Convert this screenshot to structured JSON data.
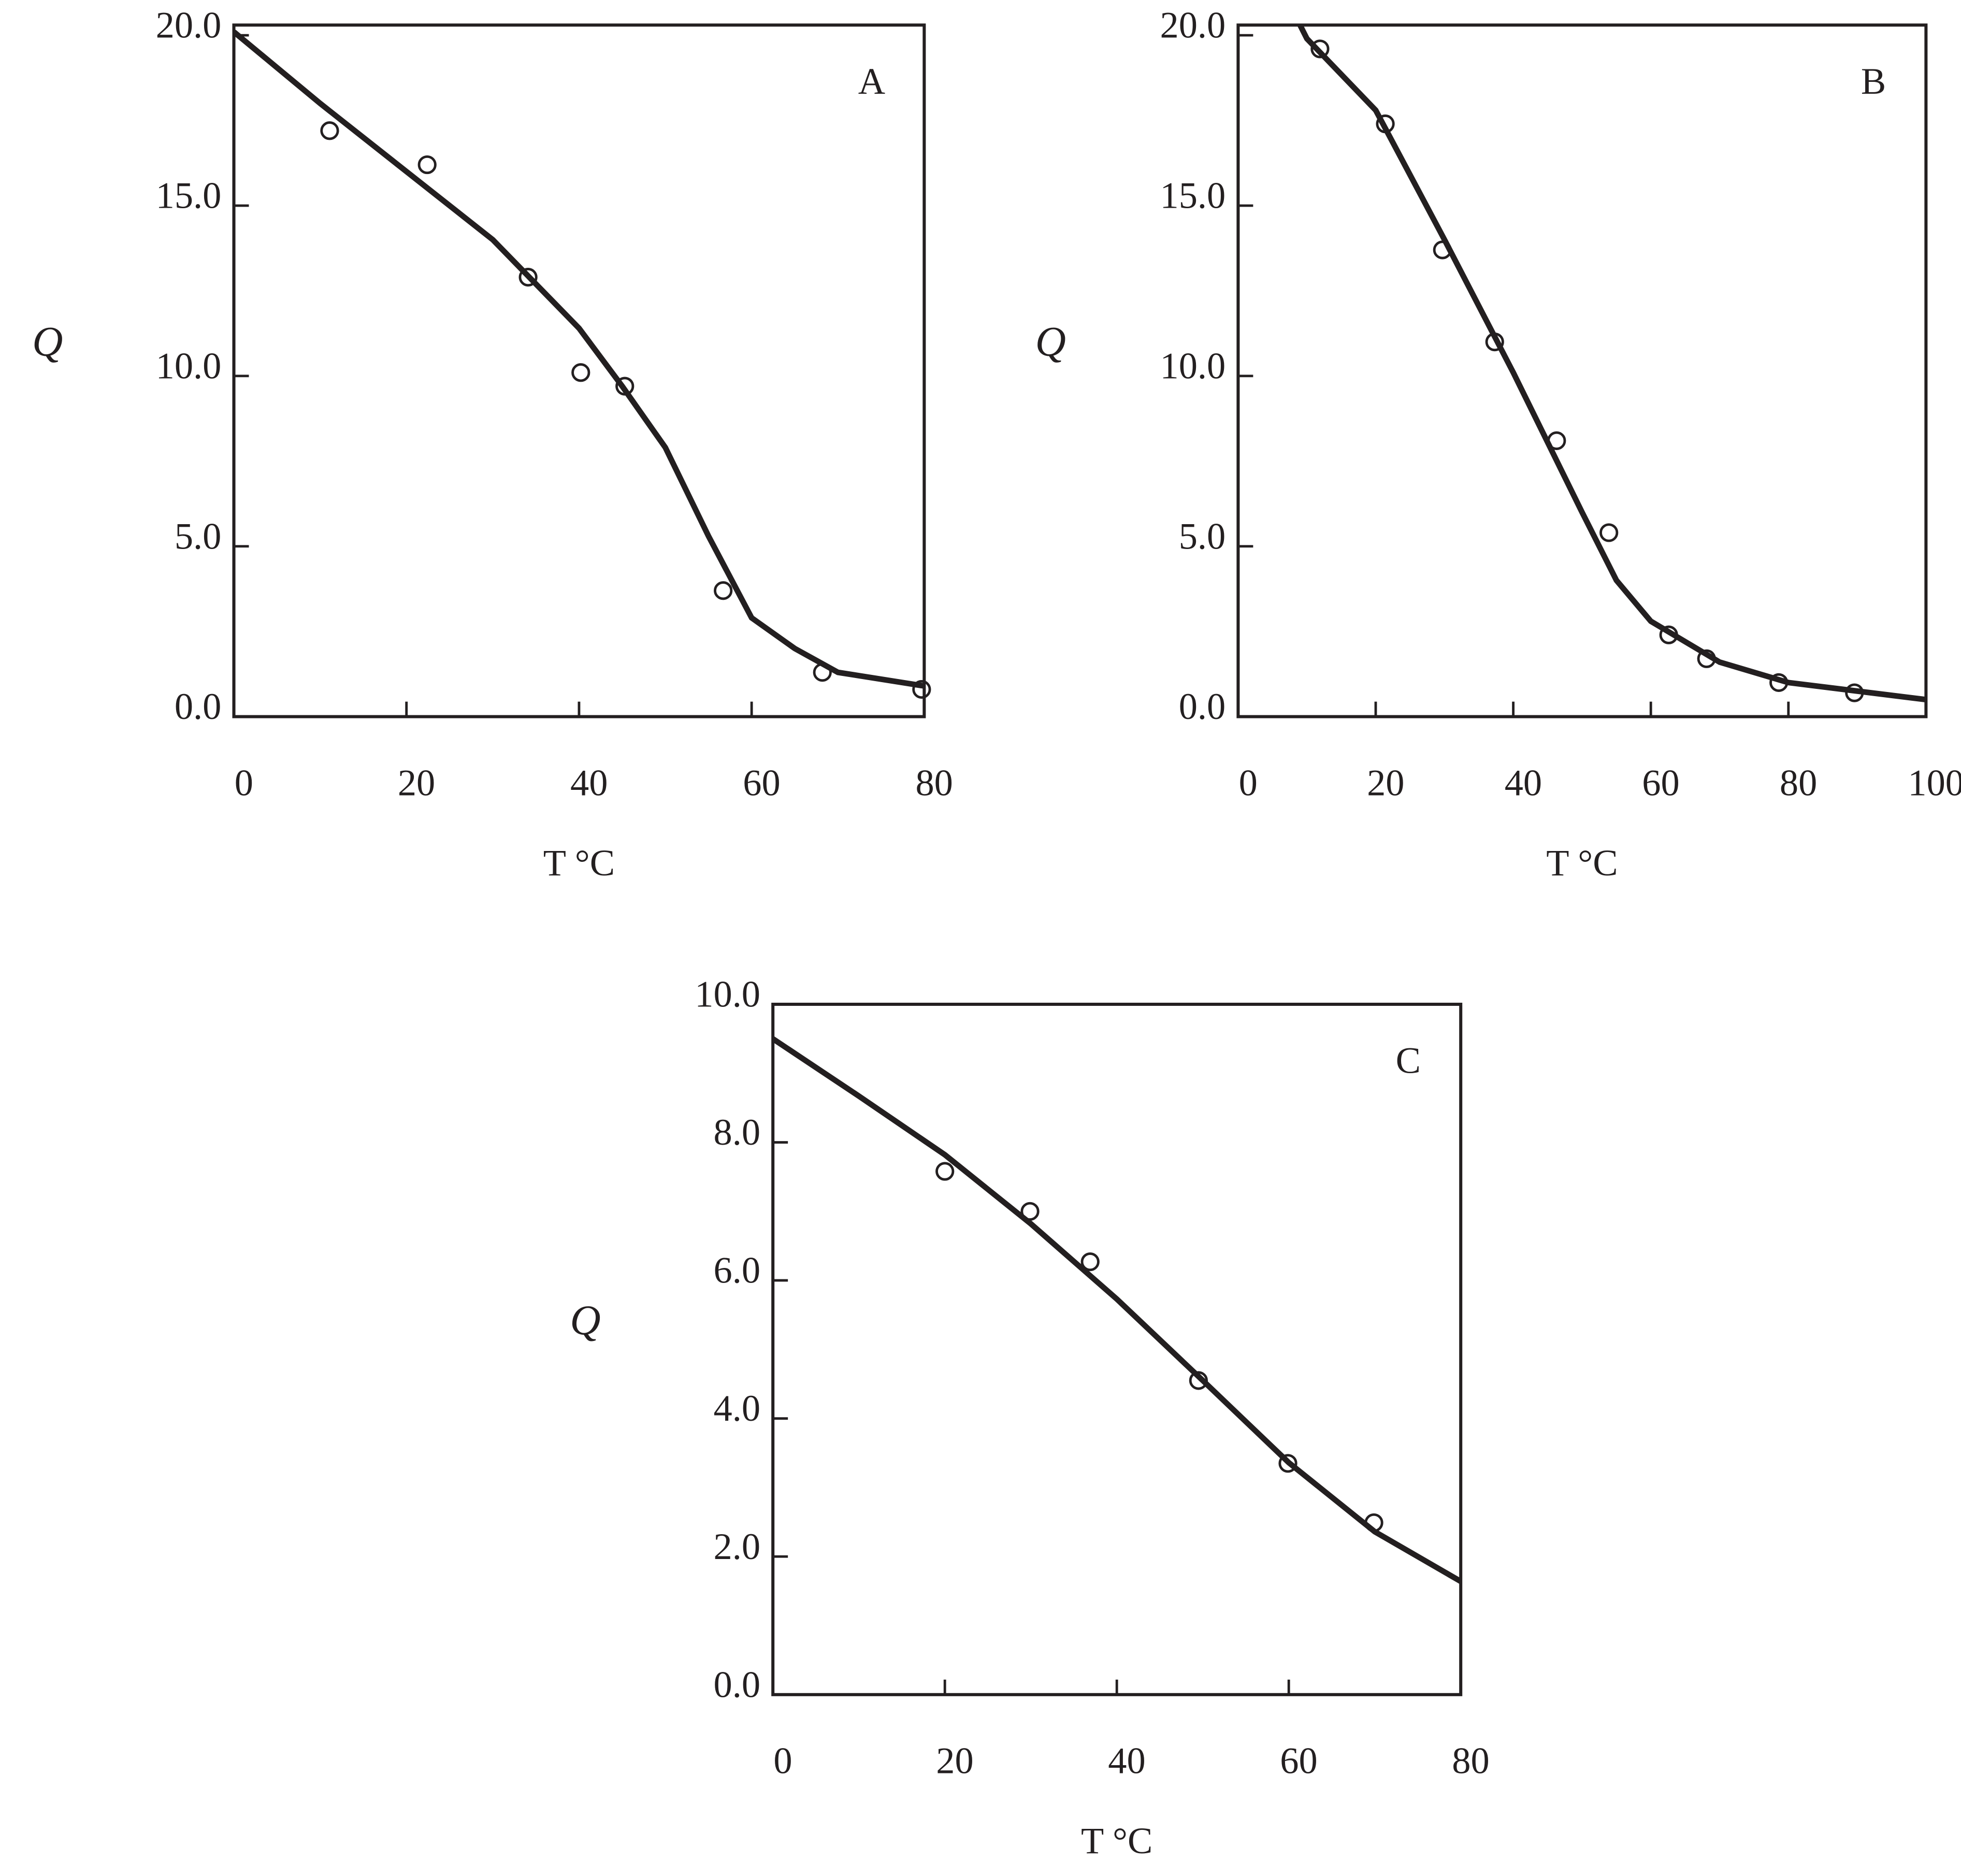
{
  "chart_data": [
    {
      "type": "scatter",
      "annotation": "A",
      "ylabel": "Q",
      "xlabel": "T  °C",
      "color": "#231f20",
      "xlim": [
        0,
        80
      ],
      "ylim": [
        0,
        20.3
      ],
      "xticks": [
        0,
        20,
        40,
        60,
        80
      ],
      "yticks": [
        {
          "value": 0,
          "label": "0.0"
        },
        {
          "value": 5,
          "label": "5.0"
        },
        {
          "value": 10,
          "label": "10.0"
        },
        {
          "value": 15,
          "label": "15.0"
        },
        {
          "value": 20,
          "label": "20.0"
        }
      ],
      "series": [
        {
          "mode": "markers",
          "x": [
            11.1,
            22.4,
            34.1,
            40.2,
            45.3,
            56.7,
            68.2,
            79.7
          ],
          "values": [
            17.2,
            16.2,
            12.9,
            10.1,
            9.7,
            3.7,
            1.3,
            0.8
          ]
        },
        {
          "mode": "line",
          "x": [
            0,
            10,
            20,
            30,
            40,
            45,
            50,
            55,
            60,
            65,
            70,
            80
          ],
          "values": [
            20.1,
            18.0,
            16.0,
            14.0,
            11.4,
            9.7,
            7.9,
            5.3,
            2.9,
            2.0,
            1.3,
            0.9
          ]
        }
      ]
    },
    {
      "type": "scatter",
      "annotation": "B",
      "ylabel": "Q",
      "xlabel": "T  °C",
      "color": "#231f20",
      "xlim": [
        0,
        100
      ],
      "ylim": [
        0,
        20.3
      ],
      "xticks": [
        0,
        20,
        40,
        60,
        80,
        100
      ],
      "yticks": [
        {
          "value": 0,
          "label": "0.0"
        },
        {
          "value": 5,
          "label": "5.0"
        },
        {
          "value": 10,
          "label": "10.0"
        },
        {
          "value": 15,
          "label": "15.0"
        },
        {
          "value": 20,
          "label": "20.0"
        }
      ],
      "series": [
        {
          "mode": "markers",
          "x": [
            11.9,
            21.4,
            29.7,
            37.3,
            46.3,
            53.9,
            62.6,
            68.1,
            78.6,
            89.6
          ],
          "values": [
            19.6,
            17.4,
            13.7,
            11.0,
            8.1,
            5.4,
            2.4,
            1.7,
            1.0,
            0.7
          ]
        },
        {
          "mode": "line",
          "x": [
            8.5,
            10,
            20,
            30,
            40,
            50,
            55,
            60,
            70,
            80,
            100
          ],
          "values": [
            20.5,
            19.9,
            17.8,
            14.0,
            10.1,
            6.0,
            4.0,
            2.8,
            1.6,
            1.0,
            0.5
          ]
        }
      ]
    },
    {
      "type": "scatter",
      "annotation": "C",
      "ylabel": "Q",
      "xlabel": "T  °C",
      "color": "#231f20",
      "xlim": [
        0,
        80
      ],
      "ylim": [
        0,
        10
      ],
      "xticks": [
        0,
        20,
        40,
        60,
        80
      ],
      "yticks": [
        {
          "value": 0,
          "label": "0.0"
        },
        {
          "value": 2,
          "label": "2.0"
        },
        {
          "value": 4,
          "label": "4.0"
        },
        {
          "value": 6,
          "label": "6.0"
        },
        {
          "value": 8,
          "label": "8.0"
        },
        {
          "value": 10,
          "label": "10.0"
        }
      ],
      "series": [
        {
          "mode": "markers",
          "x": [
            20.0,
            29.9,
            36.9,
            49.5,
            59.9,
            69.9
          ],
          "values": [
            7.58,
            7.0,
            6.27,
            4.55,
            3.35,
            2.49
          ]
        },
        {
          "mode": "line",
          "x": [
            0,
            10,
            20,
            30,
            40,
            50,
            60,
            70,
            80
          ],
          "values": [
            9.5,
            8.67,
            7.82,
            6.82,
            5.73,
            4.55,
            3.36,
            2.36,
            1.64
          ]
        }
      ]
    }
  ]
}
